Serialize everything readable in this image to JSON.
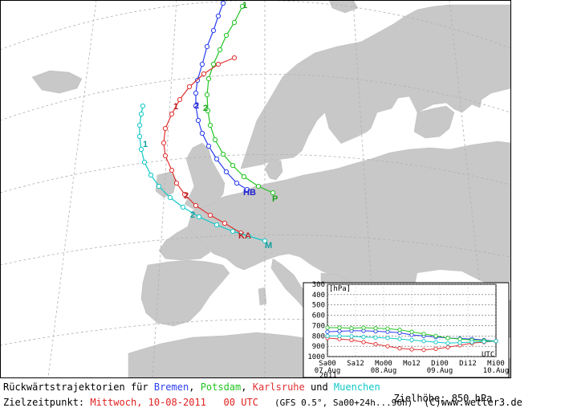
{
  "caption": {
    "line1_prefix": "Rückwärtstrajektorien für",
    "stations": [
      {
        "name": "Bremen",
        "color": "#2a3ef0"
      },
      {
        "name": "Potsdam",
        "color": "#22c422"
      },
      {
        "name": "Karlsruhe",
        "color": "#e03030"
      },
      {
        "name": "Muenchen",
        "color": "#10c8c8"
      }
    ],
    "sep1": ",",
    "sep2": ",",
    "and_word": "und",
    "target_height_label": "Zielhöhe:",
    "target_height_value": "850 hPa",
    "line2_label": "Zielzeitpunkt:",
    "line2_time": "Mittwoch, 10-08-2011   00 UTC",
    "model": "(GFS 0.5°, Sa00+24h...96h)",
    "credit": "(C)www.wetter3.de",
    "time_color": "#e02020"
  },
  "markers": {
    "HB": {
      "text": "HB",
      "color": "#2020d0"
    },
    "P": {
      "text": "P",
      "color": "#1aa01a"
    },
    "KA": {
      "text": "KA",
      "color": "#c02020"
    },
    "M": {
      "text": "M",
      "color": "#10a0a0"
    },
    "day_labels": [
      "1",
      "2"
    ]
  },
  "chart_data": {
    "type": "line",
    "ylabel": "[hPa]",
    "y_ticks": [
      300,
      400,
      500,
      600,
      700,
      800,
      900,
      1000
    ],
    "ylim": [
      300,
      1000
    ],
    "x_tick_top": [
      "Sa00",
      "Sa12",
      "Mo00",
      "Mo12",
      "Di00",
      "Di12",
      "Mi00"
    ],
    "x_tick_bottom": [
      "07.Aug",
      "",
      "08.Aug",
      "",
      "09.Aug",
      "",
      "10.Aug"
    ],
    "extra_tick": "2011",
    "x_unit": "UTC",
    "series": [
      {
        "name": "Bremen",
        "color": "#2a3ef0",
        "values": [
          760,
          755,
          750,
          750,
          755,
          760,
          770,
          790,
          800,
          810,
          820,
          825,
          830,
          840,
          850
        ]
      },
      {
        "name": "Potsdam",
        "color": "#22c422",
        "values": [
          720,
          720,
          725,
          720,
          725,
          730,
          740,
          760,
          780,
          800,
          820,
          830,
          840,
          845,
          850
        ]
      },
      {
        "name": "Karlsruhe",
        "color": "#e03030",
        "values": [
          820,
          830,
          840,
          860,
          880,
          900,
          920,
          930,
          935,
          925,
          910,
          890,
          870,
          860,
          850
        ]
      },
      {
        "name": "Muenchen",
        "color": "#10c8c8",
        "values": [
          800,
          800,
          805,
          810,
          815,
          820,
          830,
          840,
          850,
          860,
          870,
          865,
          860,
          855,
          850
        ]
      }
    ]
  }
}
